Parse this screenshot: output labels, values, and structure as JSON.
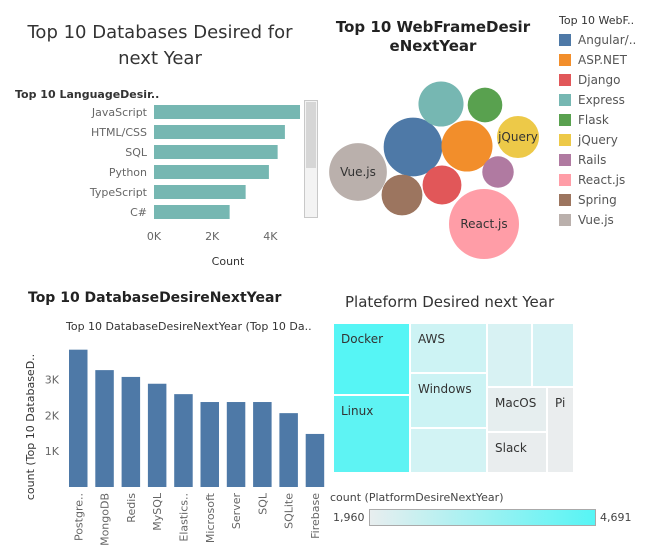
{
  "chart_data": [
    {
      "type": "bar",
      "orientation": "horizontal",
      "title": "Top 10 Databases Desired for next Year",
      "legend_title": "Top 10 LanguageDesir..",
      "categories": [
        "JavaScript",
        "HTML/CSS",
        "SQL",
        "Python",
        "TypeScript",
        "C#"
      ],
      "values": [
        5350,
        4500,
        4250,
        3950,
        3150,
        2600
      ],
      "xlabel": "Count",
      "ylabel": "",
      "xlim": [
        0,
        5500
      ],
      "xticks": [
        "0K",
        "2K",
        "4K"
      ],
      "grid": false
    },
    {
      "type": "bubble",
      "title": "Top 10 WebFrameDesireNextYear",
      "title_lines": [
        "Top 10 WebFrameDesir",
        "eNextYear"
      ],
      "legend_title": "Top 10 WebF..",
      "legend_position": "right",
      "items": [
        {
          "name": "Angular/..",
          "value": 3300,
          "color": "#4e79a7",
          "label": ""
        },
        {
          "name": "ASP.NET",
          "value": 2500,
          "color": "#f28e2b",
          "label": ""
        },
        {
          "name": "Django",
          "value": 1450,
          "color": "#e15759",
          "label": ""
        },
        {
          "name": "Express",
          "value": 1950,
          "color": "#76b7b2",
          "label": ""
        },
        {
          "name": "Flask",
          "value": 1150,
          "color": "#59a14f",
          "label": ""
        },
        {
          "name": "jQuery",
          "value": 1700,
          "color": "#edc948",
          "label": "jQuery"
        },
        {
          "name": "Rails",
          "value": 950,
          "color": "#b07aa1",
          "label": ""
        },
        {
          "name": "React.js",
          "value": 4700,
          "color": "#ff9da7",
          "label": "React.js"
        },
        {
          "name": "Spring",
          "value": 1600,
          "color": "#9c755f",
          "label": ""
        },
        {
          "name": "Vue.js",
          "value": 3200,
          "color": "#bab0ac",
          "label": "Vue.js"
        }
      ]
    },
    {
      "type": "bar",
      "title": "Top 10 DatabaseDesireNextYear",
      "subtitle": "Top 10 DatabaseDesireNextYear (Top 10 Da..",
      "categories": [
        "Postgre..",
        "MongoDB",
        "Redis",
        "MySQL",
        "Elastics..",
        "Microsoft",
        "Server",
        "SQL",
        "SQLite",
        "Firebase"
      ],
      "values": [
        3830,
        3260,
        3070,
        2880,
        2590,
        2370,
        2370,
        2370,
        2060,
        1480
      ],
      "ylabel": "count (Top 10 DatabaseD..",
      "xlabel": "",
      "ylim": [
        0,
        4100
      ],
      "yticks": [
        "1K",
        "2K",
        "3K"
      ],
      "grid": false
    },
    {
      "type": "treemap",
      "title": "Plateform Desired next Year",
      "cells": [
        {
          "label": "Docker",
          "value": 4691,
          "color": "#56f5f5"
        },
        {
          "label": "Linux",
          "value": 4600,
          "color": "#5ef3f3"
        },
        {
          "label": "AWS",
          "value": 3000,
          "color": "#cdf3f4"
        },
        {
          "label": "Windows",
          "value": 2900,
          "color": "#ccf3f4"
        },
        {
          "label": "",
          "value": 2500,
          "color": "#d2f3f4"
        },
        {
          "label": "",
          "value": 2400,
          "color": "#d8f2f3"
        },
        {
          "label": "",
          "value": 2300,
          "color": "#d5f2f4"
        },
        {
          "label": "",
          "value": 2350,
          "color": "#d7f2f4"
        },
        {
          "label": "MacOS",
          "value": 2150,
          "color": "#e6eeef"
        },
        {
          "label": "Pi",
          "value": 2000,
          "color": "#eaedee"
        },
        {
          "label": "Slack",
          "value": 1960,
          "color": "#e9edee"
        }
      ],
      "legend_title": "count (PlatformDesireNextYear)",
      "legend_min": "1,960",
      "legend_max": "4,691",
      "color_low": "#e8eeef",
      "color_high": "#56f5f5"
    }
  ]
}
